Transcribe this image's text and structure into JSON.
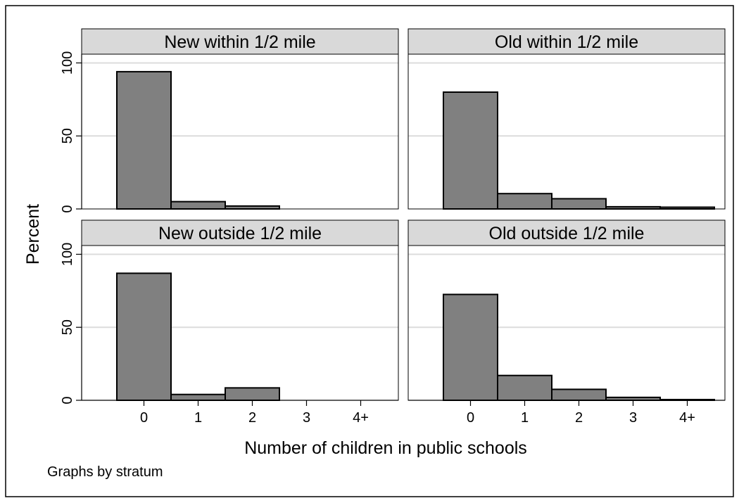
{
  "chart_data": {
    "type": "bar",
    "panels": [
      {
        "title": "New within 1/2 mile",
        "categories": [
          "0",
          "1",
          "2",
          "3",
          "4+"
        ],
        "values": [
          94,
          5,
          2,
          0,
          0
        ]
      },
      {
        "title": "Old within 1/2 mile",
        "categories": [
          "0",
          "1",
          "2",
          "3",
          "4+"
        ],
        "values": [
          80,
          10.5,
          7,
          1.5,
          1.2
        ]
      },
      {
        "title": "New outside 1/2 mile",
        "categories": [
          "0",
          "1",
          "2",
          "3",
          "4+"
        ],
        "values": [
          87,
          4,
          8.5,
          0,
          0
        ]
      },
      {
        "title": "Old outside 1/2 mile",
        "categories": [
          "0",
          "1",
          "2",
          "3",
          "4+"
        ],
        "values": [
          72.5,
          17,
          7.5,
          2,
          0.5
        ]
      }
    ],
    "xlabel": "Number of children in public schools",
    "ylabel": "Percent",
    "yticks": [
      0,
      50,
      100
    ],
    "ylim": [
      0,
      106
    ],
    "note": "Graphs by stratum",
    "grid": true,
    "bar_color": "#808080",
    "strip_color": "#d9d9d9",
    "grid_color": "#dcdcdc"
  }
}
